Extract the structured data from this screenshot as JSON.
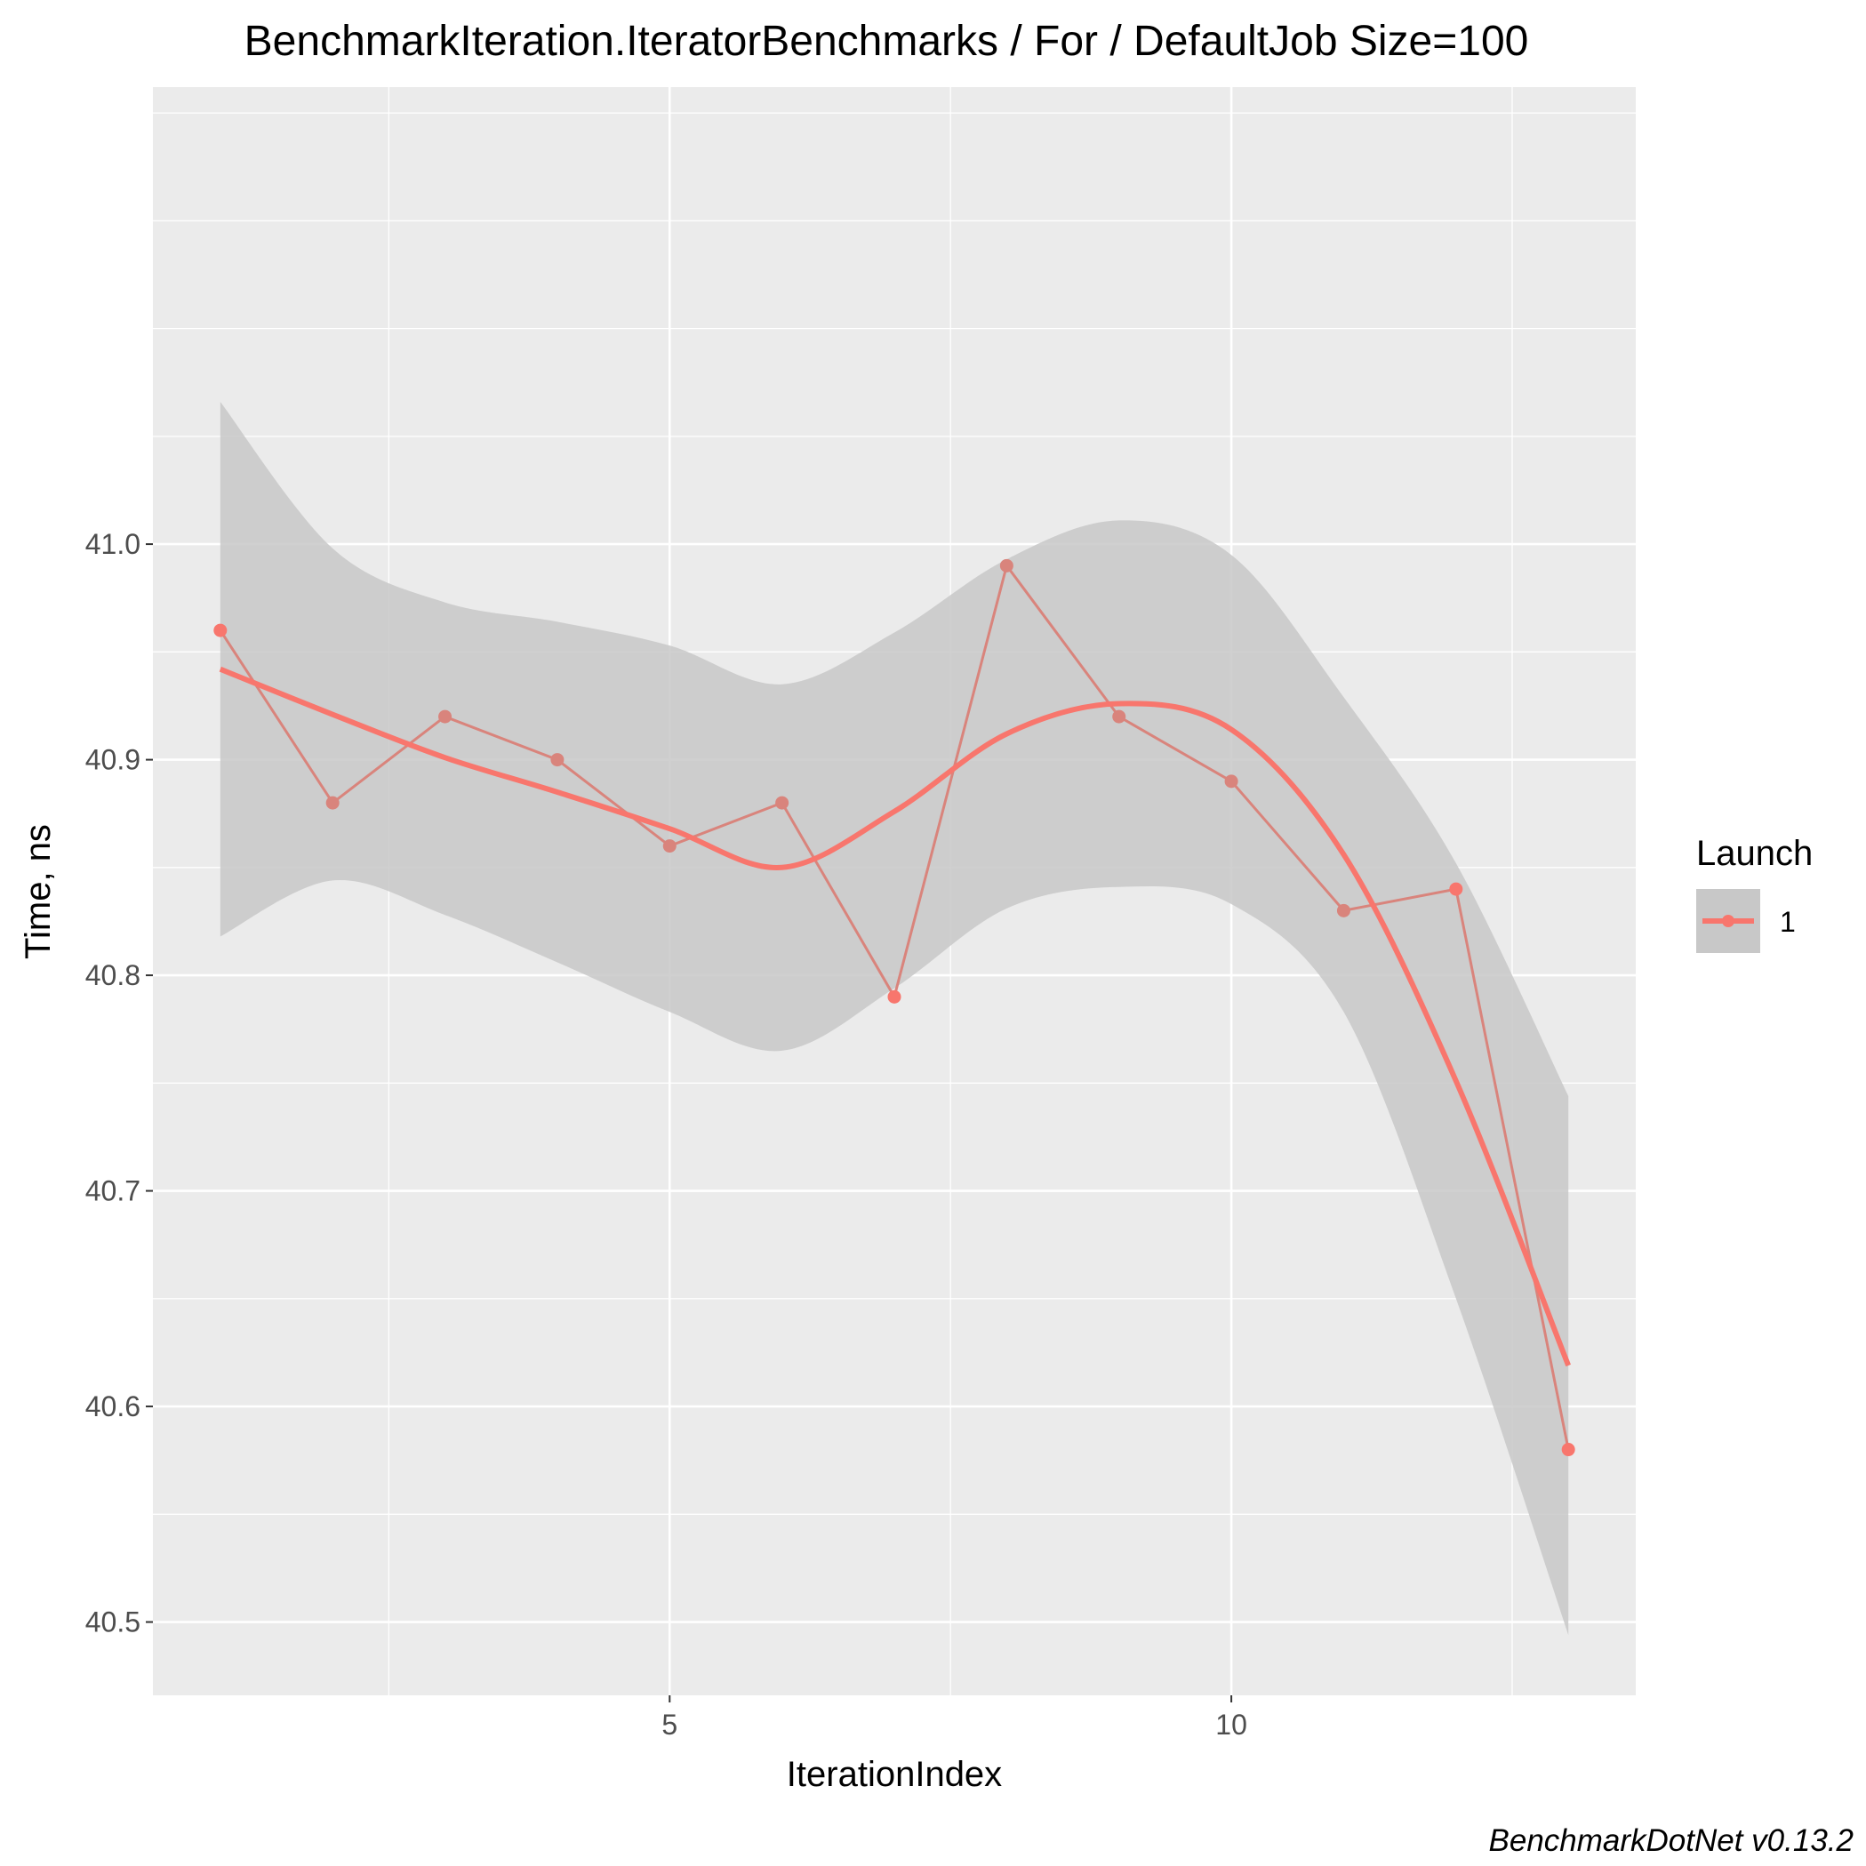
{
  "chart_data": {
    "type": "line",
    "title": "BenchmarkIteration.IteratorBenchmarks / For / DefaultJob Size=100",
    "xlabel": "IterationIndex",
    "ylabel": "Time, ns",
    "xlim": [
      0.4,
      13.6
    ],
    "ylim": [
      40.466,
      41.212
    ],
    "x_ticks": [
      5,
      10
    ],
    "x_tick_labels": [
      "5",
      "10"
    ],
    "y_ticks": [
      40.5,
      40.6,
      40.7,
      40.8,
      40.9,
      41.0
    ],
    "y_tick_labels": [
      "40.5",
      "40.6",
      "40.7",
      "40.8",
      "40.9",
      "41.0"
    ],
    "grid": true,
    "legend": {
      "title": "Launch",
      "position": "right",
      "entries": [
        "1"
      ]
    },
    "caption": "BenchmarkDotNet v0.13.2",
    "colors": {
      "series": "#F8766D",
      "raw_line": "#D9847C",
      "band": "#C8C8C8",
      "panel": "#EBEBEB",
      "grid": "#FFFFFF"
    },
    "series": [
      {
        "name": "1",
        "x": [
          1,
          2,
          3,
          4,
          5,
          6,
          7,
          8,
          9,
          10,
          11,
          12,
          13
        ],
        "values": [
          40.96,
          40.88,
          40.92,
          40.9,
          40.86,
          40.88,
          40.79,
          40.99,
          40.92,
          40.89,
          40.83,
          40.84,
          40.58
        ]
      }
    ],
    "smooth": {
      "x": [
        1,
        2,
        3,
        4,
        5,
        6,
        7,
        8,
        9,
        10,
        11,
        12,
        13
      ],
      "y": [
        40.942,
        40.921,
        40.901,
        40.885,
        40.868,
        40.85,
        40.876,
        40.912,
        40.926,
        40.914,
        40.856,
        40.751,
        40.619
      ],
      "lower": [
        40.818,
        40.844,
        40.828,
        40.806,
        40.783,
        40.765,
        40.794,
        40.831,
        40.841,
        40.833,
        40.783,
        40.65,
        40.494
      ],
      "upper": [
        41.066,
        40.998,
        40.973,
        40.964,
        40.953,
        40.935,
        40.959,
        40.993,
        41.011,
        40.995,
        40.929,
        40.852,
        40.744
      ]
    }
  }
}
